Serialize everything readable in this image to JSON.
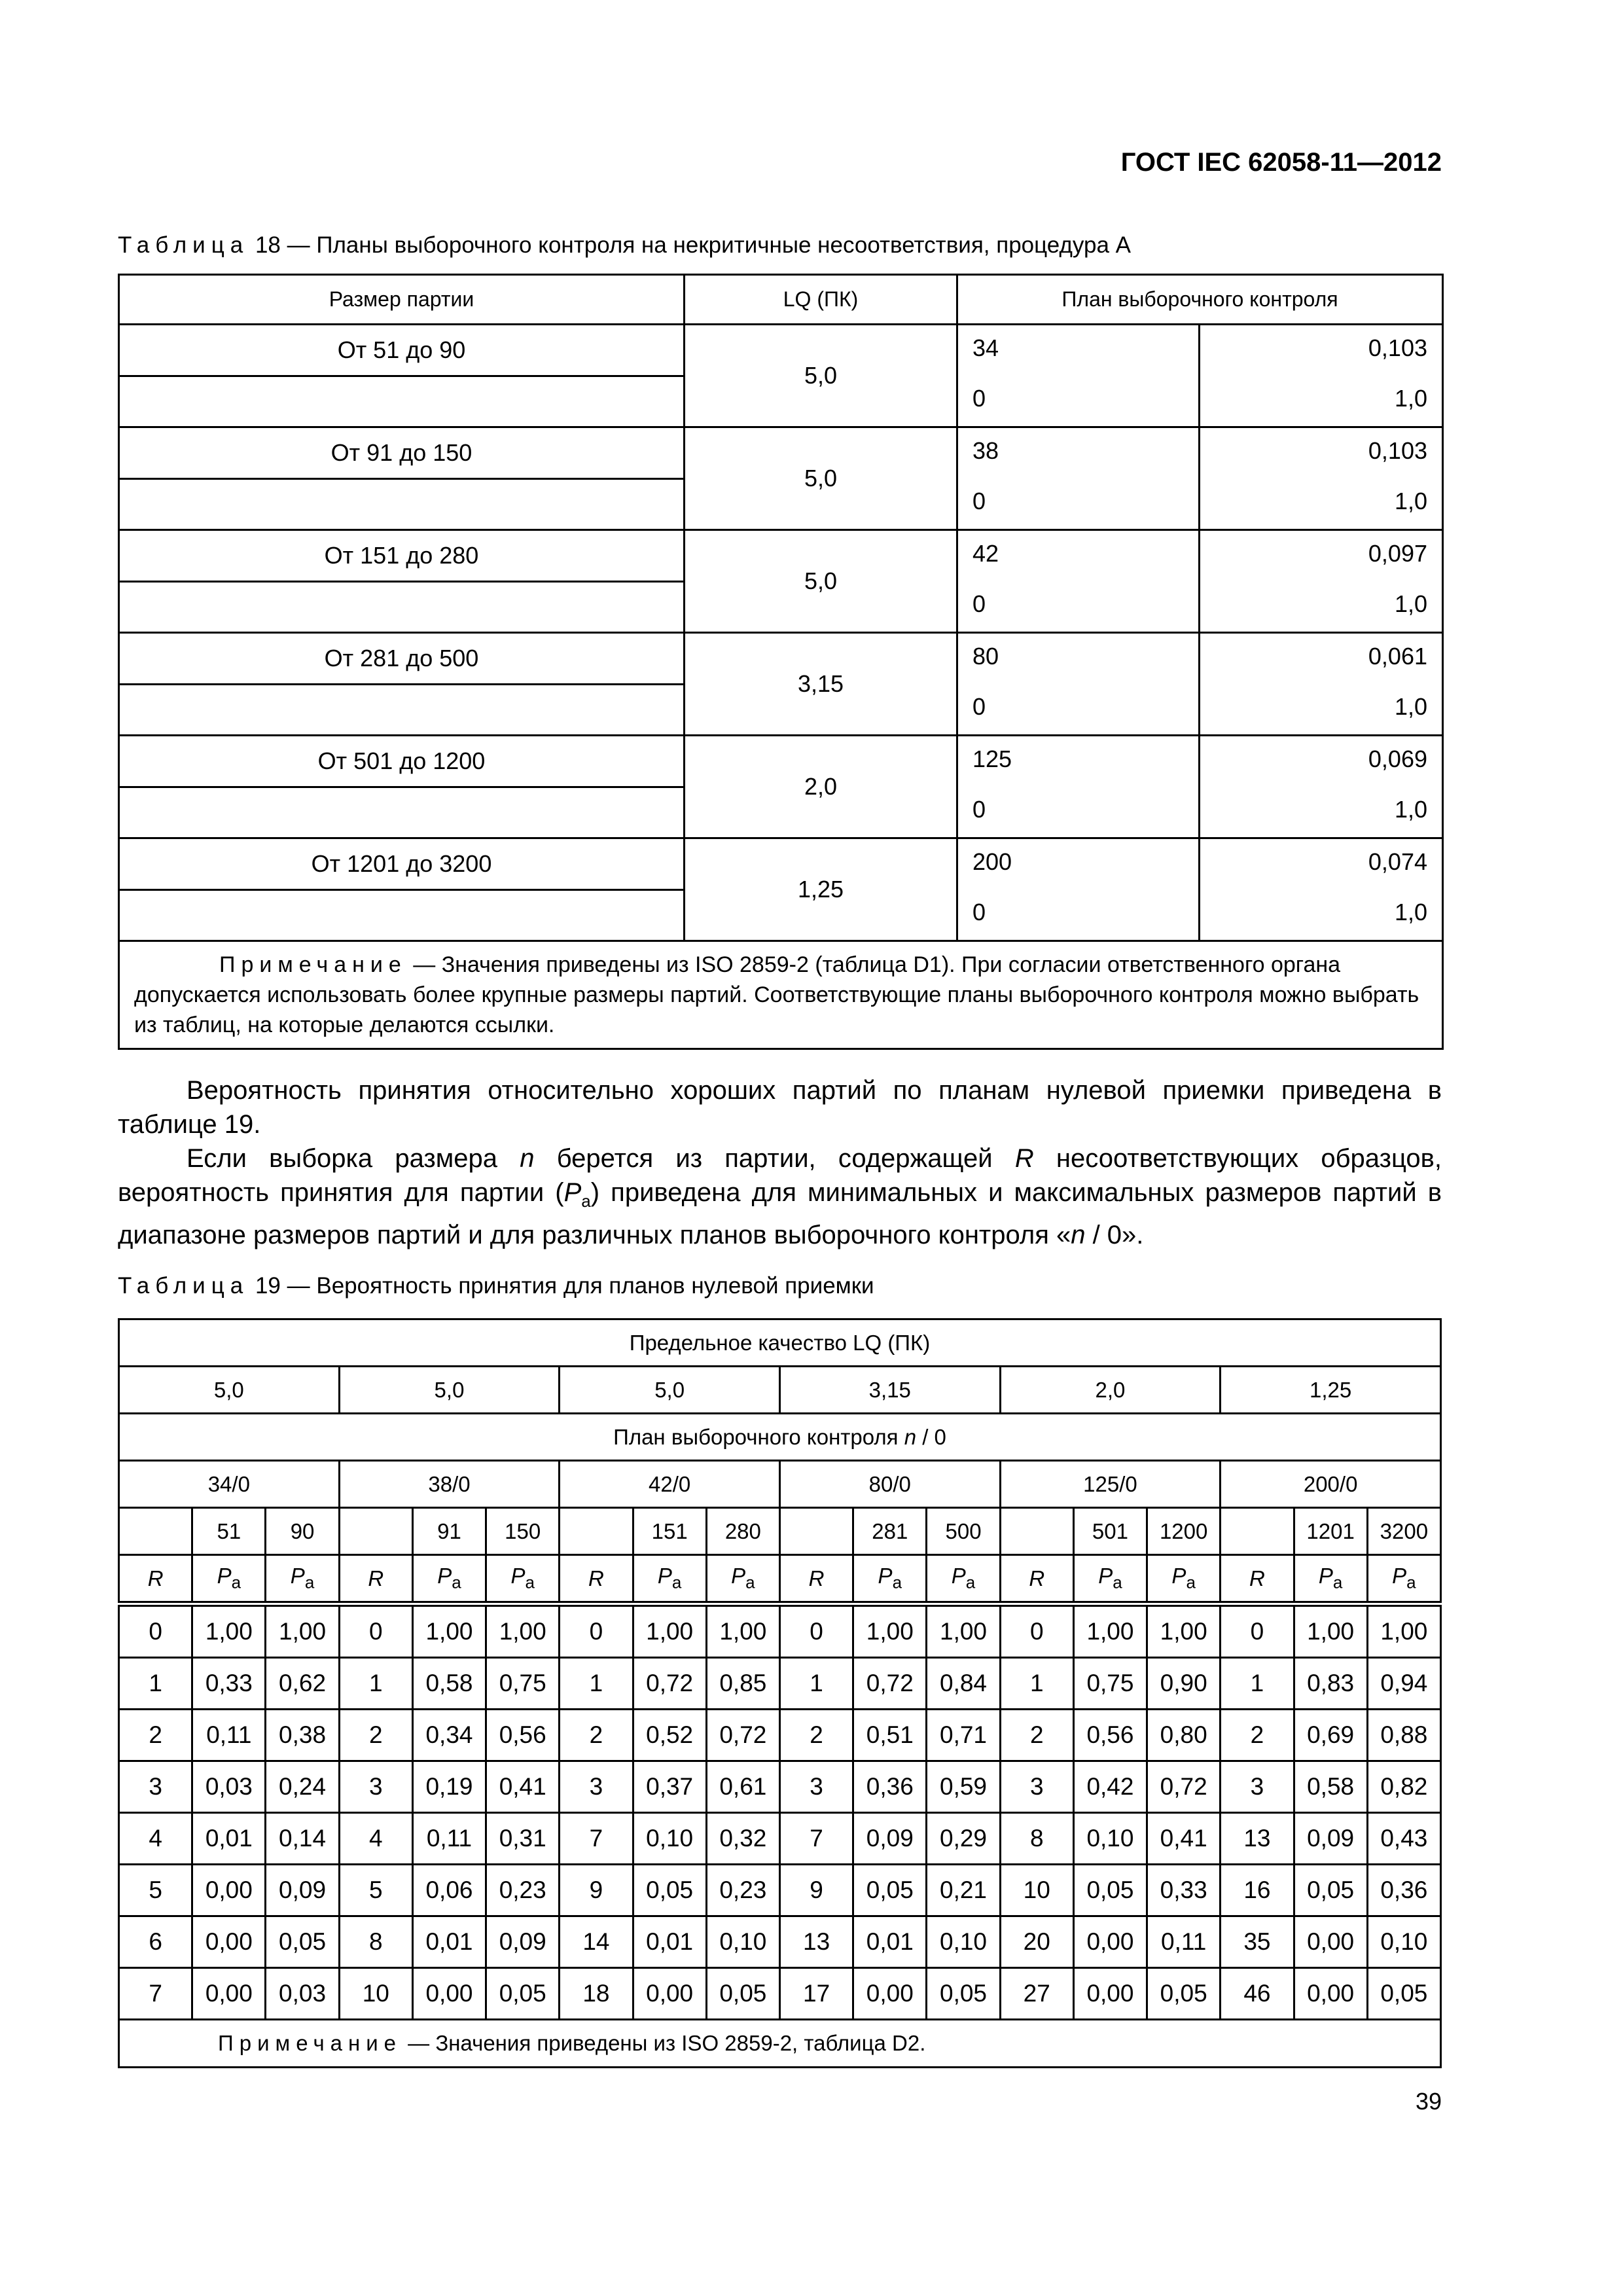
{
  "header": {
    "doc_id": "ГОСТ IEC 62058-11—2012"
  },
  "table18": {
    "caption_label": "Таблица",
    "caption_text": "18 — Планы выборочного контроля на некритичные несоответствия, процедура А",
    "headers": [
      "Размер партии",
      "LQ (ПК)",
      "План выборочного контроля"
    ],
    "rows": [
      {
        "size": "От 51 до 90",
        "lq": "5,0",
        "n": [
          "34",
          "0"
        ],
        "c": [
          "0,103",
          "1,0"
        ]
      },
      {
        "size": "От 91 до 150",
        "lq": "5,0",
        "n": [
          "38",
          "0"
        ],
        "c": [
          "0,103",
          "1,0"
        ]
      },
      {
        "size": "От 151 до 280",
        "lq": "5,0",
        "n": [
          "42",
          "0"
        ],
        "c": [
          "0,097",
          "1,0"
        ]
      },
      {
        "size": "От 281 до 500",
        "lq": "3,15",
        "n": [
          "80",
          "0"
        ],
        "c": [
          "0,061",
          "1,0"
        ]
      },
      {
        "size": "От 501 до 1200",
        "lq": "2,0",
        "n": [
          "125",
          "0"
        ],
        "c": [
          "0,069",
          "1,0"
        ]
      },
      {
        "size": "От 1201 до 3200",
        "lq": "1,25",
        "n": [
          "200",
          "0"
        ],
        "c": [
          "0,074",
          "1,0"
        ]
      }
    ],
    "note_label": "Примечание",
    "note_text": " — Значения приведены из ISO 2859-2 (таблица D1). При согласии ответственного органа допускается использовать более крупные размеры партий. Соответствующие планы выборочного контроля можно выбрать из таблиц, на которые делаются ссылки."
  },
  "paragraphs": [
    "Вероятность принятия относительно хороших партий по планам нулевой приемки приведена в таблице 19.",
    "Если выборка размера n берется из партии, содержащей R несоответствующих образцов, вероятность принятия для партии (Pa) приведена для минимальных и максимальных размеров партий в диапазоне размеров партий и для различных планов выборочного контроля «n / 0»."
  ],
  "table19": {
    "caption_label": "Таблица",
    "caption_text": "19 — Вероятность принятия для планов нулевой приемки",
    "lq_title": "Предельное качество LQ (ПК)",
    "lq_values": [
      "5,0",
      "5,0",
      "5,0",
      "3,15",
      "2,0",
      "1,25"
    ],
    "plan_title": "План выборочного контроля n / 0",
    "plans": [
      "34/0",
      "38/0",
      "42/0",
      "80/0",
      "125/0",
      "200/0"
    ],
    "lot_sizes": [
      [
        "51",
        "90"
      ],
      [
        "91",
        "150"
      ],
      [
        "151",
        "280"
      ],
      [
        "281",
        "500"
      ],
      [
        "501",
        "1200"
      ],
      [
        "1201",
        "3200"
      ]
    ],
    "col_r": "R",
    "col_pa": "P",
    "col_pa_sub": "a",
    "rows": [
      [
        "0",
        "1,00",
        "1,00",
        "0",
        "1,00",
        "1,00",
        "0",
        "1,00",
        "1,00",
        "0",
        "1,00",
        "1,00",
        "0",
        "1,00",
        "1,00",
        "0",
        "1,00",
        "1,00"
      ],
      [
        "1",
        "0,33",
        "0,62",
        "1",
        "0,58",
        "0,75",
        "1",
        "0,72",
        "0,85",
        "1",
        "0,72",
        "0,84",
        "1",
        "0,75",
        "0,90",
        "1",
        "0,83",
        "0,94"
      ],
      [
        "2",
        "0,11",
        "0,38",
        "2",
        "0,34",
        "0,56",
        "2",
        "0,52",
        "0,72",
        "2",
        "0,51",
        "0,71",
        "2",
        "0,56",
        "0,80",
        "2",
        "0,69",
        "0,88"
      ],
      [
        "3",
        "0,03",
        "0,24",
        "3",
        "0,19",
        "0,41",
        "3",
        "0,37",
        "0,61",
        "3",
        "0,36",
        "0,59",
        "3",
        "0,42",
        "0,72",
        "3",
        "0,58",
        "0,82"
      ],
      [
        "4",
        "0,01",
        "0,14",
        "4",
        "0,11",
        "0,31",
        "7",
        "0,10",
        "0,32",
        "7",
        "0,09",
        "0,29",
        "8",
        "0,10",
        "0,41",
        "13",
        "0,09",
        "0,43"
      ],
      [
        "5",
        "0,00",
        "0,09",
        "5",
        "0,06",
        "0,23",
        "9",
        "0,05",
        "0,23",
        "9",
        "0,05",
        "0,21",
        "10",
        "0,05",
        "0,33",
        "16",
        "0,05",
        "0,36"
      ],
      [
        "6",
        "0,00",
        "0,05",
        "8",
        "0,01",
        "0,09",
        "14",
        "0,01",
        "0,10",
        "13",
        "0,01",
        "0,10",
        "20",
        "0,00",
        "0,11",
        "35",
        "0,00",
        "0,10"
      ],
      [
        "7",
        "0,00",
        "0,03",
        "10",
        "0,00",
        "0,05",
        "18",
        "0,00",
        "0,05",
        "17",
        "0,00",
        "0,05",
        "27",
        "0,00",
        "0,05",
        "46",
        "0,00",
        "0,05"
      ]
    ],
    "note_label": "Примечание",
    "note_text": " — Значения приведены из ISO 2859-2, таблица D2."
  },
  "page_number": "39"
}
